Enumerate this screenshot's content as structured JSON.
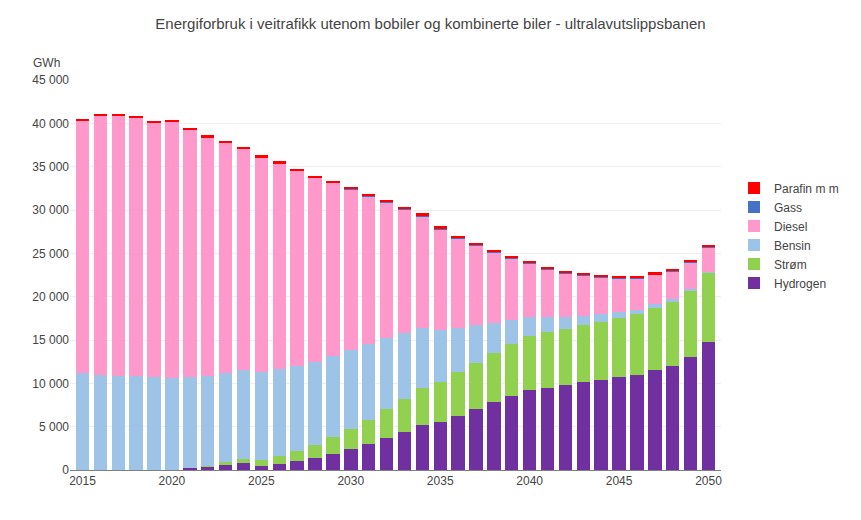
{
  "chart_data": {
    "type": "bar",
    "stacked": true,
    "title": "Energiforbruk i veitrafikk utenom bobiler og kombinerte biler - ultralavutslippsbanen",
    "ylabel": "GWh",
    "x": [
      2015,
      2016,
      2017,
      2018,
      2019,
      2020,
      2021,
      2022,
      2023,
      2024,
      2025,
      2026,
      2027,
      2028,
      2029,
      2030,
      2031,
      2032,
      2033,
      2034,
      2035,
      2036,
      2037,
      2038,
      2039,
      2040,
      2041,
      2042,
      2043,
      2044,
      2045,
      2046,
      2047,
      2048,
      2049,
      2050
    ],
    "series": [
      {
        "name": "Hydrogen",
        "color": "#7030A0",
        "values": [
          0,
          0,
          0,
          0,
          0,
          0,
          200,
          400,
          600,
          800,
          500,
          700,
          1000,
          1400,
          1900,
          2400,
          3000,
          3700,
          4400,
          5200,
          5500,
          6200,
          7000,
          7800,
          8500,
          9200,
          9500,
          9800,
          10100,
          10400,
          10700,
          11000,
          11500,
          12000,
          13000,
          14800
        ]
      },
      {
        "name": "Strøm",
        "color": "#92D050",
        "values": [
          0,
          0,
          0,
          0,
          0,
          0,
          0,
          100,
          300,
          500,
          700,
          900,
          1200,
          1500,
          1900,
          2300,
          2800,
          3300,
          3800,
          4300,
          4700,
          5100,
          5400,
          5700,
          6000,
          6300,
          6400,
          6500,
          6600,
          6700,
          6800,
          7000,
          7200,
          7400,
          7700,
          8000
        ]
      },
      {
        "name": "Bensin",
        "color": "#9DC3E6",
        "values": [
          11200,
          11000,
          10900,
          10800,
          10700,
          10600,
          10500,
          10400,
          10300,
          10200,
          10100,
          10000,
          9800,
          9600,
          9400,
          9100,
          8700,
          8200,
          7600,
          6900,
          6000,
          5100,
          4300,
          3500,
          2800,
          2200,
          1700,
          1400,
          1100,
          900,
          700,
          500,
          400,
          300,
          200,
          100
        ]
      },
      {
        "name": "Diesel",
        "color": "#FF99CC",
        "values": [
          29100,
          29900,
          30000,
          29900,
          29400,
          29600,
          28600,
          27500,
          26600,
          25600,
          24800,
          23800,
          22500,
          21200,
          20000,
          18600,
          17100,
          15700,
          14300,
          12900,
          11600,
          10300,
          9200,
          8100,
          7100,
          6100,
          5500,
          5000,
          4600,
          4200,
          3900,
          3600,
          3400,
          3200,
          3000,
          2800
        ]
      },
      {
        "name": "Gass",
        "color": "#4472C4",
        "values": [
          0,
          0,
          0,
          0,
          0,
          0,
          0,
          0,
          0,
          0,
          0,
          0,
          0,
          0,
          0,
          100,
          100,
          100,
          100,
          100,
          100,
          100,
          100,
          100,
          100,
          100,
          100,
          100,
          100,
          100,
          100,
          100,
          100,
          100,
          100,
          100
        ]
      },
      {
        "name": "Parafin m m",
        "color": "#FF0000",
        "values": [
          200,
          200,
          200,
          200,
          200,
          200,
          200,
          200,
          200,
          200,
          200,
          200,
          200,
          200,
          200,
          200,
          200,
          200,
          200,
          200,
          200,
          200,
          200,
          200,
          200,
          200,
          200,
          200,
          200,
          200,
          200,
          200,
          200,
          200,
          200,
          200
        ]
      }
    ],
    "xlim": [
      2014.3,
      2050.7
    ],
    "xticks": [
      2015,
      2020,
      2025,
      2030,
      2035,
      2040,
      2045,
      2050
    ],
    "ylim": [
      0,
      45000
    ],
    "yticks": [
      0,
      {
        "value": 5000,
        "label": "5 000"
      },
      {
        "value": 10000,
        "label": "10 000"
      },
      {
        "value": 15000,
        "label": "15 000"
      },
      {
        "value": 20000,
        "label": "20 000"
      },
      {
        "value": 25000,
        "label": "25 000"
      },
      {
        "value": 30000,
        "label": "30 000"
      },
      {
        "value": 35000,
        "label": "35 000"
      },
      {
        "value": 40000,
        "label": "40 000"
      },
      {
        "value": 45000,
        "label": "45 000"
      }
    ],
    "grid": true,
    "legend": "right"
  }
}
